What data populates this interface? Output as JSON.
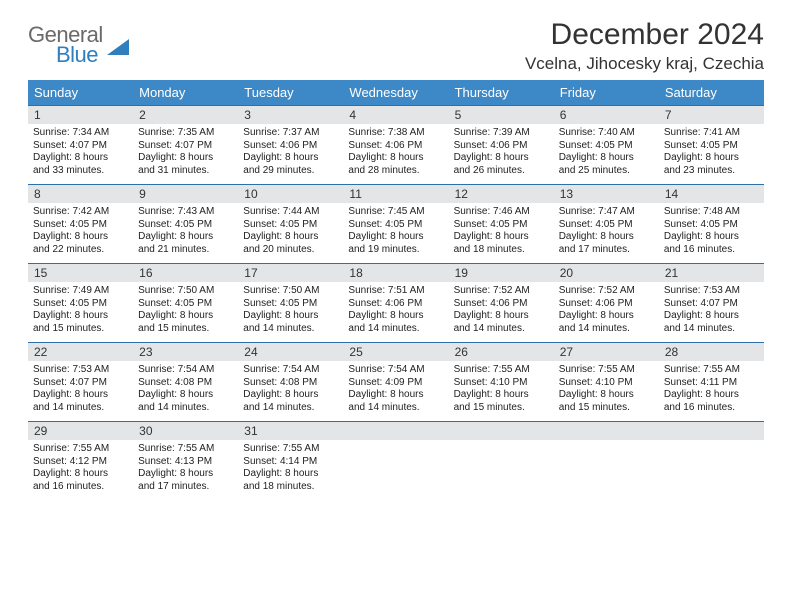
{
  "logo": {
    "line1": "General",
    "line2": "Blue",
    "triangle_color": "#2f7fbf"
  },
  "title": "December 2024",
  "location": "Vcelna, Jihocesky kraj, Czechia",
  "colors": {
    "header_bg": "#3d88c6",
    "header_text": "#ffffff",
    "row_border": "#2d6fa8",
    "daynum_bg": "#e3e5e7",
    "text": "#333333"
  },
  "weekdays": [
    "Sunday",
    "Monday",
    "Tuesday",
    "Wednesday",
    "Thursday",
    "Friday",
    "Saturday"
  ],
  "weeks": [
    [
      {
        "day": "1",
        "sunrise": "Sunrise: 7:34 AM",
        "sunset": "Sunset: 4:07 PM",
        "daylight1": "Daylight: 8 hours",
        "daylight2": "and 33 minutes."
      },
      {
        "day": "2",
        "sunrise": "Sunrise: 7:35 AM",
        "sunset": "Sunset: 4:07 PM",
        "daylight1": "Daylight: 8 hours",
        "daylight2": "and 31 minutes."
      },
      {
        "day": "3",
        "sunrise": "Sunrise: 7:37 AM",
        "sunset": "Sunset: 4:06 PM",
        "daylight1": "Daylight: 8 hours",
        "daylight2": "and 29 minutes."
      },
      {
        "day": "4",
        "sunrise": "Sunrise: 7:38 AM",
        "sunset": "Sunset: 4:06 PM",
        "daylight1": "Daylight: 8 hours",
        "daylight2": "and 28 minutes."
      },
      {
        "day": "5",
        "sunrise": "Sunrise: 7:39 AM",
        "sunset": "Sunset: 4:06 PM",
        "daylight1": "Daylight: 8 hours",
        "daylight2": "and 26 minutes."
      },
      {
        "day": "6",
        "sunrise": "Sunrise: 7:40 AM",
        "sunset": "Sunset: 4:05 PM",
        "daylight1": "Daylight: 8 hours",
        "daylight2": "and 25 minutes."
      },
      {
        "day": "7",
        "sunrise": "Sunrise: 7:41 AM",
        "sunset": "Sunset: 4:05 PM",
        "daylight1": "Daylight: 8 hours",
        "daylight2": "and 23 minutes."
      }
    ],
    [
      {
        "day": "8",
        "sunrise": "Sunrise: 7:42 AM",
        "sunset": "Sunset: 4:05 PM",
        "daylight1": "Daylight: 8 hours",
        "daylight2": "and 22 minutes."
      },
      {
        "day": "9",
        "sunrise": "Sunrise: 7:43 AM",
        "sunset": "Sunset: 4:05 PM",
        "daylight1": "Daylight: 8 hours",
        "daylight2": "and 21 minutes."
      },
      {
        "day": "10",
        "sunrise": "Sunrise: 7:44 AM",
        "sunset": "Sunset: 4:05 PM",
        "daylight1": "Daylight: 8 hours",
        "daylight2": "and 20 minutes."
      },
      {
        "day": "11",
        "sunrise": "Sunrise: 7:45 AM",
        "sunset": "Sunset: 4:05 PM",
        "daylight1": "Daylight: 8 hours",
        "daylight2": "and 19 minutes."
      },
      {
        "day": "12",
        "sunrise": "Sunrise: 7:46 AM",
        "sunset": "Sunset: 4:05 PM",
        "daylight1": "Daylight: 8 hours",
        "daylight2": "and 18 minutes."
      },
      {
        "day": "13",
        "sunrise": "Sunrise: 7:47 AM",
        "sunset": "Sunset: 4:05 PM",
        "daylight1": "Daylight: 8 hours",
        "daylight2": "and 17 minutes."
      },
      {
        "day": "14",
        "sunrise": "Sunrise: 7:48 AM",
        "sunset": "Sunset: 4:05 PM",
        "daylight1": "Daylight: 8 hours",
        "daylight2": "and 16 minutes."
      }
    ],
    [
      {
        "day": "15",
        "sunrise": "Sunrise: 7:49 AM",
        "sunset": "Sunset: 4:05 PM",
        "daylight1": "Daylight: 8 hours",
        "daylight2": "and 15 minutes."
      },
      {
        "day": "16",
        "sunrise": "Sunrise: 7:50 AM",
        "sunset": "Sunset: 4:05 PM",
        "daylight1": "Daylight: 8 hours",
        "daylight2": "and 15 minutes."
      },
      {
        "day": "17",
        "sunrise": "Sunrise: 7:50 AM",
        "sunset": "Sunset: 4:05 PM",
        "daylight1": "Daylight: 8 hours",
        "daylight2": "and 14 minutes."
      },
      {
        "day": "18",
        "sunrise": "Sunrise: 7:51 AM",
        "sunset": "Sunset: 4:06 PM",
        "daylight1": "Daylight: 8 hours",
        "daylight2": "and 14 minutes."
      },
      {
        "day": "19",
        "sunrise": "Sunrise: 7:52 AM",
        "sunset": "Sunset: 4:06 PM",
        "daylight1": "Daylight: 8 hours",
        "daylight2": "and 14 minutes."
      },
      {
        "day": "20",
        "sunrise": "Sunrise: 7:52 AM",
        "sunset": "Sunset: 4:06 PM",
        "daylight1": "Daylight: 8 hours",
        "daylight2": "and 14 minutes."
      },
      {
        "day": "21",
        "sunrise": "Sunrise: 7:53 AM",
        "sunset": "Sunset: 4:07 PM",
        "daylight1": "Daylight: 8 hours",
        "daylight2": "and 14 minutes."
      }
    ],
    [
      {
        "day": "22",
        "sunrise": "Sunrise: 7:53 AM",
        "sunset": "Sunset: 4:07 PM",
        "daylight1": "Daylight: 8 hours",
        "daylight2": "and 14 minutes."
      },
      {
        "day": "23",
        "sunrise": "Sunrise: 7:54 AM",
        "sunset": "Sunset: 4:08 PM",
        "daylight1": "Daylight: 8 hours",
        "daylight2": "and 14 minutes."
      },
      {
        "day": "24",
        "sunrise": "Sunrise: 7:54 AM",
        "sunset": "Sunset: 4:08 PM",
        "daylight1": "Daylight: 8 hours",
        "daylight2": "and 14 minutes."
      },
      {
        "day": "25",
        "sunrise": "Sunrise: 7:54 AM",
        "sunset": "Sunset: 4:09 PM",
        "daylight1": "Daylight: 8 hours",
        "daylight2": "and 14 minutes."
      },
      {
        "day": "26",
        "sunrise": "Sunrise: 7:55 AM",
        "sunset": "Sunset: 4:10 PM",
        "daylight1": "Daylight: 8 hours",
        "daylight2": "and 15 minutes."
      },
      {
        "day": "27",
        "sunrise": "Sunrise: 7:55 AM",
        "sunset": "Sunset: 4:10 PM",
        "daylight1": "Daylight: 8 hours",
        "daylight2": "and 15 minutes."
      },
      {
        "day": "28",
        "sunrise": "Sunrise: 7:55 AM",
        "sunset": "Sunset: 4:11 PM",
        "daylight1": "Daylight: 8 hours",
        "daylight2": "and 16 minutes."
      }
    ],
    [
      {
        "day": "29",
        "sunrise": "Sunrise: 7:55 AM",
        "sunset": "Sunset: 4:12 PM",
        "daylight1": "Daylight: 8 hours",
        "daylight2": "and 16 minutes."
      },
      {
        "day": "30",
        "sunrise": "Sunrise: 7:55 AM",
        "sunset": "Sunset: 4:13 PM",
        "daylight1": "Daylight: 8 hours",
        "daylight2": "and 17 minutes."
      },
      {
        "day": "31",
        "sunrise": "Sunrise: 7:55 AM",
        "sunset": "Sunset: 4:14 PM",
        "daylight1": "Daylight: 8 hours",
        "daylight2": "and 18 minutes."
      },
      {
        "empty": true
      },
      {
        "empty": true
      },
      {
        "empty": true
      },
      {
        "empty": true
      }
    ]
  ]
}
